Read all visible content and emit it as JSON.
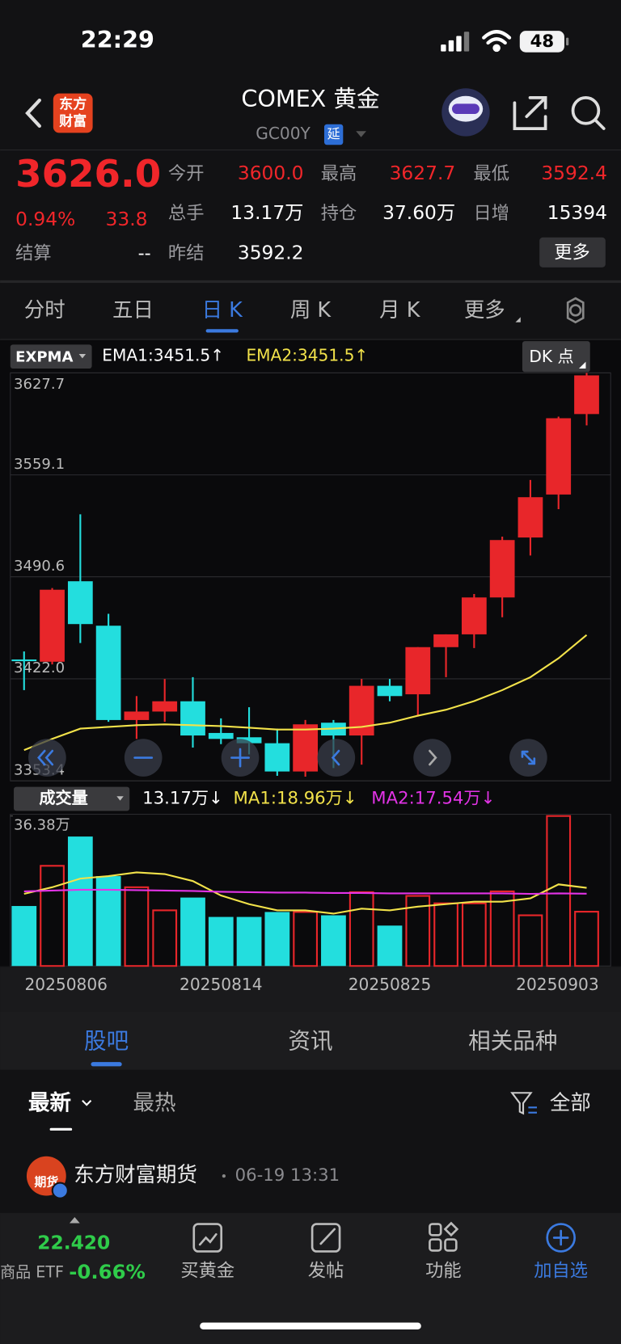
{
  "status_bar": {
    "time": "22:29",
    "battery": "48"
  },
  "header": {
    "title": "COMEX 黄金",
    "code": "GC00Y",
    "badge": "延",
    "logo": [
      "东方",
      "财富"
    ]
  },
  "quote": {
    "price": "3626.0",
    "change_pct": "0.94%",
    "change": "33.8",
    "settle": {
      "label": "结算",
      "value": "--"
    },
    "rows": [
      {
        "color": "#f0262a",
        "items": [
          {
            "label": "今开",
            "value": "3600.0"
          },
          {
            "label": "最高",
            "value": "3627.7"
          },
          {
            "label": "最低",
            "value": "3592.4"
          }
        ]
      },
      {
        "color": "#ffffff",
        "items": [
          {
            "label": "总手",
            "value": "13.17万"
          },
          {
            "label": "持仓",
            "value": "37.60万"
          },
          {
            "label": "日增",
            "value": "15394"
          }
        ]
      },
      {
        "color": "#ffffff",
        "items": [
          {
            "label": "昨结",
            "value": "3592.2"
          }
        ]
      }
    ],
    "more": "更多"
  },
  "period_tabs": {
    "items": [
      "分时",
      "五日",
      "日 K",
      "周 K",
      "月 K",
      "更多"
    ],
    "active": 2
  },
  "chart_data": [
    {
      "type": "candlestick",
      "indicator": "EXPMA",
      "legend": [
        {
          "text": "EMA1:3451.5↑",
          "color": "#ffffff"
        },
        {
          "text": "EMA2:3451.5↑",
          "color": "#f2e24a"
        }
      ],
      "badge": "DK 点",
      "up_color": "#e8262a",
      "down_color": "#23dede",
      "open": [
        3435.0,
        3433.5,
        3487.6,
        3457.7,
        3394.3,
        3400.0,
        3406.9,
        3385.6,
        3382.7,
        3378.7,
        3359.7,
        3392.5,
        3383.9,
        3417.3,
        3411.6,
        3443.3,
        3451.9,
        3476.7,
        3517.0,
        3545.9,
        3600.0
      ],
      "high": [
        3440.4,
        3483.0,
        3532.6,
        3465.7,
        3410.4,
        3421.9,
        3423.1,
        3395.4,
        3402.9,
        3388.5,
        3394.3,
        3394.3,
        3421.9,
        3421.9,
        3443.3,
        3451.9,
        3479.0,
        3517.6,
        3555.7,
        3598.3,
        3627.7
      ],
      "low": [
        3414.4,
        3431.7,
        3446.1,
        3393.1,
        3381.6,
        3393.1,
        3375.8,
        3378.1,
        3371.2,
        3356.8,
        3356.2,
        3362.0,
        3364.3,
        3406.9,
        3396.6,
        3423.1,
        3442.7,
        3463.4,
        3504.9,
        3536.1,
        3592.4
      ],
      "close": [
        3434.0,
        3481.9,
        3458.8,
        3394.3,
        3400.0,
        3406.9,
        3383.9,
        3381.6,
        3378.7,
        3359.7,
        3391.4,
        3383.9,
        3417.3,
        3410.4,
        3443.3,
        3451.9,
        3476.7,
        3515.3,
        3544.1,
        3597.2,
        3626.0
      ],
      "series": [
        {
          "color": "#f2e24a",
          "values": [
            3374.1,
            3381.6,
            3388.5,
            3389.7,
            3390.8,
            3391.4,
            3390.8,
            3390.2,
            3389.1,
            3387.9,
            3387.9,
            3388.5,
            3389.7,
            3392.5,
            3397.2,
            3401.2,
            3407.0,
            3414.4,
            3423.1,
            3435.8,
            3451.5
          ]
        }
      ],
      "ylim": [
        3353.4,
        3627.7
      ],
      "yticks": [
        3627.7,
        3559.1,
        3490.6,
        {
          "value": 3422,
          "label": "3422.0"
        },
        3353.4
      ],
      "grid": true
    },
    {
      "type": "bar",
      "indicator": "成交量",
      "legend": [
        {
          "text": "13.17万↓",
          "color": "#ffffff"
        },
        {
          "text": "MA1:18.96万↓",
          "color": "#f2e24a"
        },
        {
          "text": "MA2:17.54万↓",
          "color": "#e233e6"
        }
      ],
      "categories": [
        null,
        "20250806",
        null,
        null,
        null,
        null,
        null,
        "20250814",
        null,
        null,
        null,
        null,
        null,
        "20250825",
        null,
        null,
        null,
        null,
        null,
        "20250903",
        null
      ],
      "values": [
        14.55,
        24.3,
        31.4,
        21.8,
        19.1,
        13.5,
        16.6,
        11.9,
        11.9,
        13.1,
        13.1,
        12.3,
        17.9,
        9.8,
        17.0,
        15.2,
        15.2,
        18.1,
        12.3,
        36.38,
        13.17
      ],
      "series": [
        {
          "color": "#f2e24a",
          "values": [
            17.5,
            19.1,
            21.2,
            21.8,
            22.7,
            22.3,
            20.6,
            17.1,
            15.0,
            13.5,
            13.5,
            12.7,
            13.9,
            13.5,
            14.4,
            15.0,
            15.6,
            15.6,
            16.4,
            19.8,
            18.96
          ]
        },
        {
          "color": "#e233e6",
          "values": [
            18.1,
            18.3,
            18.5,
            18.5,
            18.4,
            18.3,
            18.2,
            18.0,
            17.9,
            17.8,
            17.8,
            17.7,
            17.7,
            17.6,
            17.6,
            17.6,
            17.6,
            17.6,
            17.5,
            17.6,
            17.54
          ]
        }
      ],
      "ylim": [
        0,
        36.38
      ],
      "yticks": [
        {
          "value": 36.38,
          "label": "36.38万"
        }
      ]
    }
  ],
  "section_tabs": {
    "items": [
      "股吧",
      "资讯",
      "相关品种"
    ],
    "active": 0
  },
  "filters": {
    "latest": "最新",
    "hot": "最热",
    "all": "全部"
  },
  "post": {
    "avatar": "期货",
    "author": "东方财富期货",
    "time": "06-19 13:31"
  },
  "bottom_bar": {
    "etf_price": "22.420",
    "etf_label": "商品 ETF",
    "etf_change": "-0.66%",
    "actions": [
      "买黄金",
      "发帖",
      "功能",
      "加自选"
    ]
  }
}
